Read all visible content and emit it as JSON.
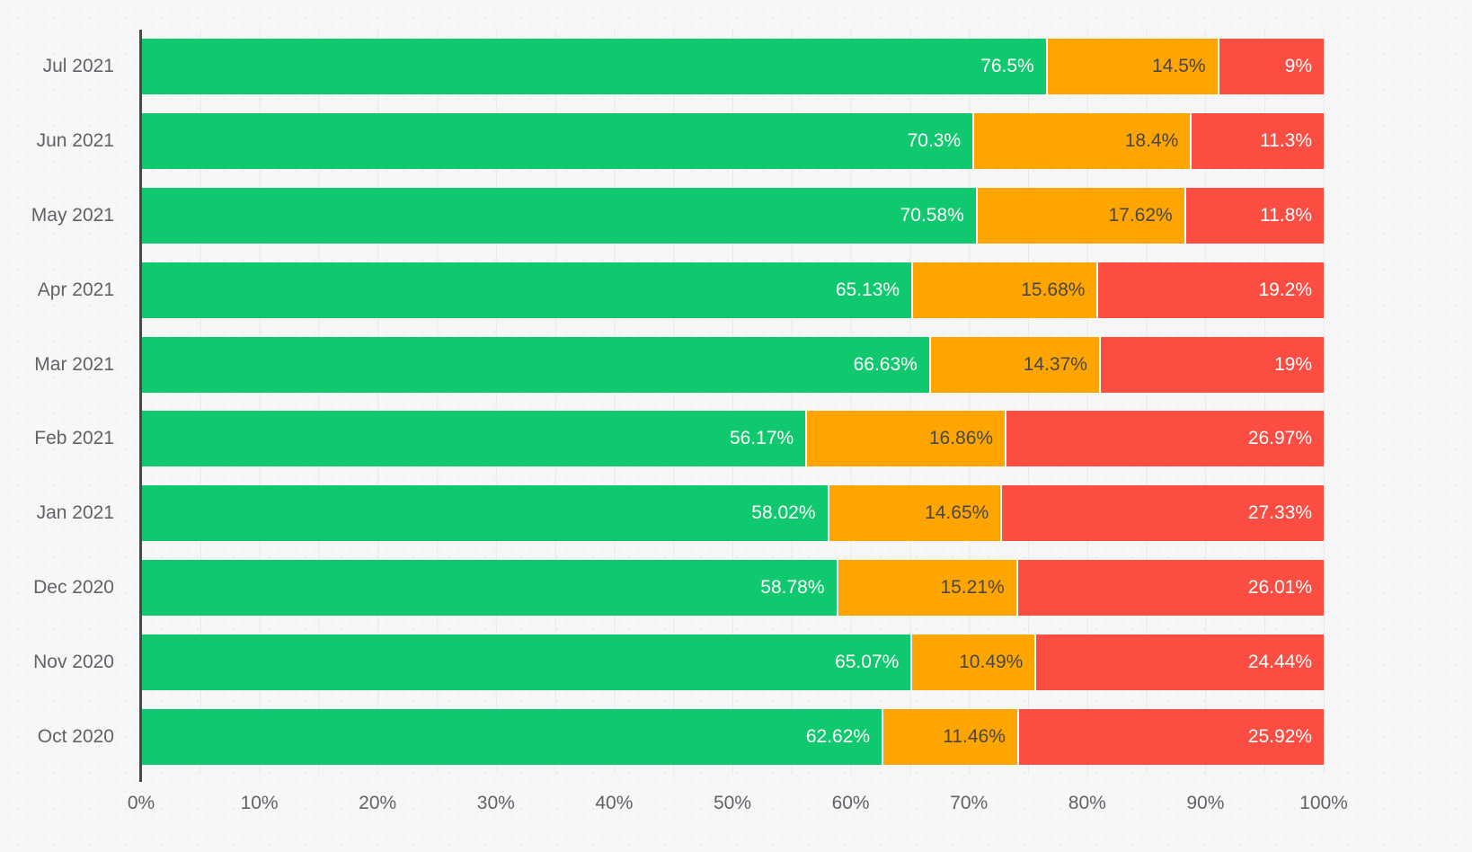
{
  "chart_data": {
    "type": "bar",
    "variant": "stacked-horizontal",
    "title": "",
    "categories": [
      "Jul 2021",
      "Jun 2021",
      "May 2021",
      "Apr 2021",
      "Mar 2021",
      "Feb 2021",
      "Jan 2021",
      "Dec 2020",
      "Nov 2020",
      "Oct 2020"
    ],
    "series": [
      {
        "name": "green",
        "color": "#10c96e",
        "label_color": "#ffffff",
        "values": [
          76.5,
          70.3,
          70.58,
          65.13,
          66.63,
          56.17,
          58.02,
          58.78,
          65.07,
          62.62
        ],
        "labels": [
          "76.5%",
          "70.3%",
          "70.58%",
          "65.13%",
          "66.63%",
          "56.17%",
          "58.02%",
          "58.78%",
          "65.07%",
          "62.62%"
        ]
      },
      {
        "name": "orange",
        "color": "#ffa502",
        "label_color": "#484848",
        "values": [
          14.5,
          18.4,
          17.62,
          15.68,
          14.37,
          16.86,
          14.65,
          15.21,
          10.49,
          11.46
        ],
        "labels": [
          "14.5%",
          "18.4%",
          "17.62%",
          "15.68%",
          "14.37%",
          "16.86%",
          "14.65%",
          "15.21%",
          "10.49%",
          "11.46%"
        ]
      },
      {
        "name": "red",
        "color": "#fb4d42",
        "label_color": "#ffffff",
        "values": [
          9,
          11.3,
          11.8,
          19.2,
          19,
          26.97,
          27.33,
          26.01,
          24.44,
          25.92
        ],
        "labels": [
          "9%",
          "11.3%",
          "11.8%",
          "19.2%",
          "19%",
          "26.97%",
          "27.33%",
          "26.01%",
          "24.44%",
          "25.92%"
        ]
      }
    ],
    "x_axis": {
      "min": 0,
      "max": 100,
      "tick_labels": [
        "0%",
        "10%",
        "20%",
        "30%",
        "40%",
        "50%",
        "60%",
        "70%",
        "80%",
        "90%",
        "100%"
      ],
      "minor_grid_step_percent": 5,
      "grid": "on"
    },
    "legend": "none",
    "style_colors": {
      "background": "#f7f7f8",
      "gridline": "#e9e9eb",
      "axis_line": "#45474b",
      "axis_text": "#5f6368"
    }
  }
}
